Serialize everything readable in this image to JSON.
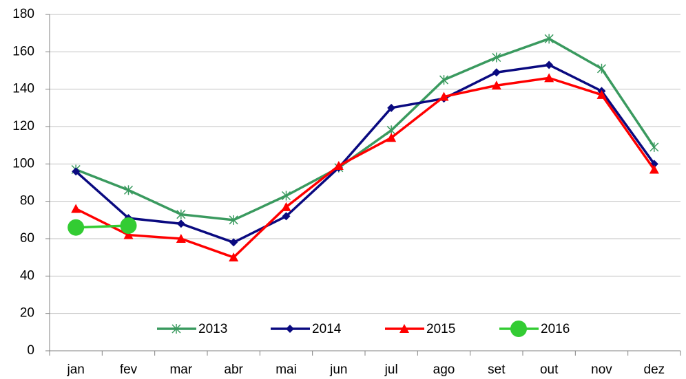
{
  "chart_data": {
    "type": "line",
    "categories": [
      "jan",
      "fev",
      "mar",
      "abr",
      "mai",
      "jun",
      "jul",
      "ago",
      "set",
      "out",
      "nov",
      "dez"
    ],
    "series": [
      {
        "name": "2013",
        "color": "#3a9a5f",
        "marker": "star",
        "values": [
          97,
          86,
          73,
          70,
          83,
          98,
          118,
          145,
          157,
          167,
          151,
          109
        ]
      },
      {
        "name": "2014",
        "color": "#0a0a80",
        "marker": "diamond",
        "values": [
          96,
          71,
          68,
          58,
          72,
          98,
          130,
          135,
          149,
          153,
          139,
          100
        ]
      },
      {
        "name": "2015",
        "color": "#ff0000",
        "marker": "triangle",
        "values": [
          76,
          62,
          60,
          50,
          77,
          99,
          114,
          136,
          142,
          146,
          137,
          97
        ]
      },
      {
        "name": "2016",
        "color": "#33cc33",
        "marker": "circle",
        "values": [
          66,
          67,
          null,
          null,
          null,
          null,
          null,
          null,
          null,
          null,
          null,
          null
        ]
      }
    ],
    "ylim": [
      0,
      180
    ],
    "yticks": [
      0,
      20,
      40,
      60,
      80,
      100,
      120,
      140,
      160,
      180
    ],
    "grid": true,
    "legend": "bottom"
  }
}
